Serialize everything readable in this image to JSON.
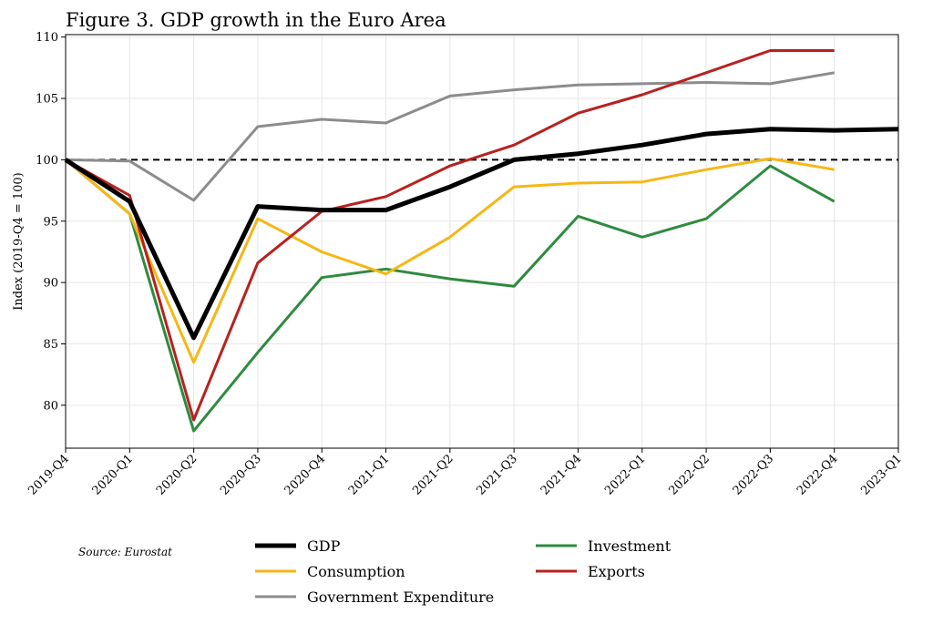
{
  "chart_data": {
    "type": "line",
    "title": "Figure 3. GDP growth in the Euro Area",
    "xlabel": "",
    "ylabel": "Index (2019-Q4 = 100)",
    "categories": [
      "2019-Q4",
      "2020-Q1",
      "2020-Q2",
      "2020-Q3",
      "2020-Q4",
      "2021-Q1",
      "2021-Q2",
      "2021-Q3",
      "2021-Q4",
      "2022-Q1",
      "2022-Q2",
      "2022-Q3",
      "2022-Q4",
      "2023-Q1"
    ],
    "ylim": [
      76.5,
      110.2
    ],
    "yticks": [
      80,
      85,
      90,
      95,
      100,
      105,
      110
    ],
    "reference_line": {
      "y": 100,
      "style": "dashed",
      "color": "#000000"
    },
    "grid": true,
    "series": [
      {
        "name": "Investment",
        "color": "#2e8b3e",
        "width": 3,
        "values": [
          100,
          95.6,
          77.9,
          84.3,
          90.4,
          91.1,
          90.3,
          89.7,
          95.4,
          93.7,
          95.2,
          99.5,
          96.6,
          null
        ]
      },
      {
        "name": "Consumption",
        "color": "#f6b715",
        "width": 3,
        "values": [
          100,
          95.6,
          83.5,
          95.2,
          92.5,
          90.7,
          93.7,
          97.8,
          98.1,
          98.2,
          99.2,
          100.1,
          99.2,
          null
        ]
      },
      {
        "name": "Government Expenditure",
        "color": "#8c8c8c",
        "width": 3,
        "values": [
          100,
          99.9,
          96.7,
          102.7,
          103.3,
          103.0,
          105.2,
          105.7,
          106.1,
          106.2,
          106.3,
          106.2,
          107.1,
          null
        ]
      },
      {
        "name": "Exports",
        "color": "#b8211f",
        "width": 3,
        "values": [
          100,
          97.1,
          78.8,
          91.6,
          95.8,
          97.0,
          99.5,
          101.2,
          103.8,
          105.3,
          107.1,
          108.9,
          108.9,
          null
        ]
      },
      {
        "name": "GDP",
        "color": "#000000",
        "width": 5,
        "values": [
          100,
          96.6,
          85.5,
          96.2,
          95.9,
          95.9,
          97.8,
          100.0,
          100.5,
          101.2,
          102.1,
          102.5,
          102.4,
          102.5
        ]
      }
    ],
    "legend": {
      "placement": "bottom",
      "columns": [
        [
          "GDP",
          "Consumption",
          "Government Expenditure"
        ],
        [
          "Investment",
          "Exports"
        ]
      ]
    },
    "source": "Source: Eurostat"
  }
}
